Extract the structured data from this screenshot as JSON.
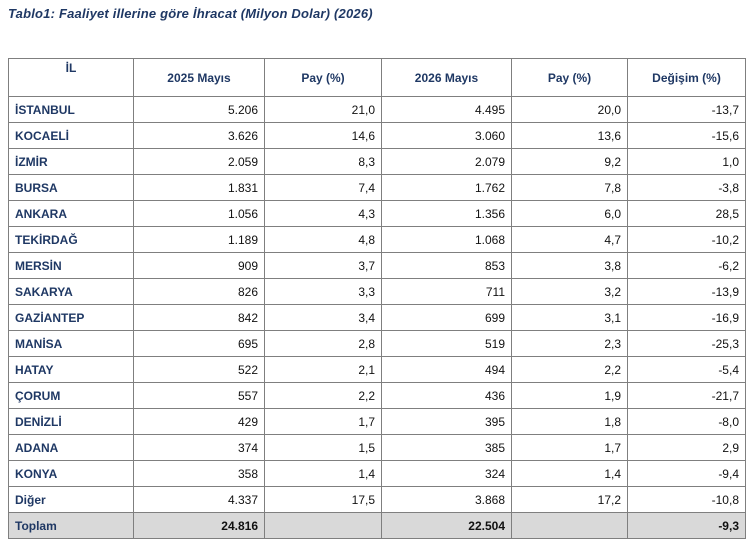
{
  "title": "Tablo1: Faaliyet illerine göre İhracat (Milyon Dolar) (2026)",
  "headers": [
    "İL",
    "2025 Mayıs",
    "Pay  (%)",
    "2026 Mayıs",
    "Pay  (%)",
    "Değişim (%)"
  ],
  "rows": [
    [
      "İSTANBUL",
      "5.206",
      "21,0",
      "4.495",
      "20,0",
      "-13,7"
    ],
    [
      "KOCAELİ",
      "3.626",
      "14,6",
      "3.060",
      "13,6",
      "-15,6"
    ],
    [
      "İZMİR",
      "2.059",
      "8,3",
      "2.079",
      "9,2",
      "1,0"
    ],
    [
      "BURSA",
      "1.831",
      "7,4",
      "1.762",
      "7,8",
      "-3,8"
    ],
    [
      "ANKARA",
      "1.056",
      "4,3",
      "1.356",
      "6,0",
      "28,5"
    ],
    [
      "TEKİRDAĞ",
      "1.189",
      "4,8",
      "1.068",
      "4,7",
      "-10,2"
    ],
    [
      "MERSİN",
      "909",
      "3,7",
      "853",
      "3,8",
      "-6,2"
    ],
    [
      "SAKARYA",
      "826",
      "3,3",
      "711",
      "3,2",
      "-13,9"
    ],
    [
      "GAZİANTEP",
      "842",
      "3,4",
      "699",
      "3,1",
      "-16,9"
    ],
    [
      "MANİSA",
      "695",
      "2,8",
      "519",
      "2,3",
      "-25,3"
    ],
    [
      "HATAY",
      "522",
      "2,1",
      "494",
      "2,2",
      "-5,4"
    ],
    [
      "ÇORUM",
      "557",
      "2,2",
      "436",
      "1,9",
      "-21,7"
    ],
    [
      "DENİZLİ",
      "429",
      "1,7",
      "395",
      "1,8",
      "-8,0"
    ],
    [
      "ADANA",
      "374",
      "1,5",
      "385",
      "1,7",
      "2,9"
    ],
    [
      "KONYA",
      "358",
      "1,4",
      "324",
      "1,4",
      "-9,4"
    ],
    [
      "Diğer",
      "4.337",
      "17,5",
      "3.868",
      "17,2",
      "-10,8"
    ]
  ],
  "total": [
    "Toplam",
    "24.816",
    "",
    "22.504",
    "",
    "-9,3"
  ]
}
